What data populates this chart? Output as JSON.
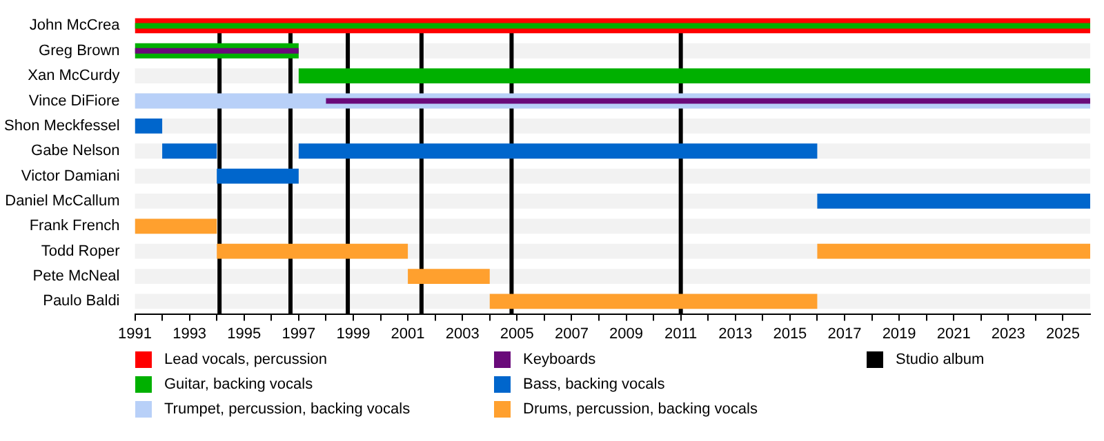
{
  "chart_data": {
    "type": "bar",
    "orientation": "horizontal",
    "legend": "bottom",
    "categories": [
      "John McCrea",
      "Greg Brown",
      "Xan McCurdy",
      "Vince DiFiore",
      "Shon Meckfessel",
      "Gabe Nelson",
      "Victor Damiani",
      "Daniel McCallum",
      "Frank French",
      "Todd Roper",
      "Pete McNeal",
      "Paulo Baldi"
    ],
    "xlim": [
      1991,
      2026
    ],
    "xticks": [
      1991,
      {
        "value": 1992,
        "label": null
      },
      1993,
      {
        "value": 1994,
        "label": null
      },
      1995,
      {
        "value": 1996,
        "label": null
      },
      1997,
      {
        "value": 1998,
        "label": null
      },
      1999,
      {
        "value": 2000,
        "label": null
      },
      2001,
      {
        "value": 2002,
        "label": null
      },
      2003,
      {
        "value": 2004,
        "label": null
      },
      2005,
      {
        "value": 2006,
        "label": null
      },
      2007,
      {
        "value": 2008,
        "label": null
      },
      2009,
      {
        "value": 2010,
        "label": null
      },
      2011,
      {
        "value": 2012,
        "label": null
      },
      2013,
      {
        "value": 2014,
        "label": null
      },
      2015,
      {
        "value": 2016,
        "label": null
      },
      2017,
      {
        "value": 2018,
        "label": null
      },
      2019,
      {
        "value": 2020,
        "label": null
      },
      2021,
      {
        "value": 2022,
        "label": null
      },
      2023,
      {
        "value": 2024,
        "label": null
      },
      2025
    ],
    "series": [
      {
        "name": "Lead vocals, percussion",
        "color": "#ff0000",
        "base": [
          1991,
          null,
          null,
          null,
          null,
          null,
          null,
          null,
          null,
          null,
          null,
          null
        ],
        "values": [
          35,
          null,
          null,
          null,
          null,
          null,
          null,
          null,
          null,
          null,
          null,
          null
        ]
      },
      {
        "name": "Guitar, backing vocals",
        "color": "#00b000",
        "base": [
          1991,
          1991,
          1997,
          null,
          null,
          null,
          null,
          null,
          null,
          null,
          null,
          null
        ],
        "values": [
          35,
          6,
          29,
          null,
          null,
          null,
          null,
          null,
          null,
          null,
          null,
          null
        ]
      },
      {
        "name": "Trumpet, percussion, backing vocals",
        "color": "#b8d0f8",
        "base": [
          null,
          null,
          null,
          1991,
          null,
          null,
          null,
          null,
          null,
          null,
          null,
          null
        ],
        "values": [
          null,
          null,
          null,
          35,
          null,
          null,
          null,
          null,
          null,
          null,
          null,
          null
        ]
      },
      {
        "name": "Keyboards",
        "color": "#6a0a7a",
        "base": [
          null,
          1991,
          null,
          1998,
          null,
          null,
          null,
          null,
          null,
          null,
          null,
          null
        ],
        "values": [
          null,
          6,
          null,
          28,
          null,
          null,
          null,
          null,
          null,
          null,
          null,
          null
        ]
      },
      {
        "name": "Bass, backing vocals",
        "color": "#0066cc",
        "base": [
          null,
          null,
          null,
          null,
          1991,
          1992,
          1994,
          2016,
          null,
          null,
          null,
          null
        ],
        "values": [
          null,
          null,
          null,
          null,
          1,
          2,
          3,
          10,
          null,
          null,
          null,
          null
        ]
      },
      {
        "name": "Drums, percussion, backing vocals",
        "color": "#ffa02e",
        "base": [
          null,
          null,
          null,
          null,
          null,
          null,
          null,
          null,
          1991,
          1994,
          2001,
          2004
        ],
        "values": [
          null,
          null,
          null,
          null,
          null,
          null,
          null,
          null,
          3,
          7,
          3,
          12
        ]
      },
      {
        "color": "#0066cc",
        "base": [
          null,
          null,
          null,
          null,
          null,
          1997,
          null,
          null,
          null,
          null,
          null,
          null
        ],
        "values": [
          null,
          null,
          null,
          null,
          null,
          19,
          null,
          null,
          null,
          null,
          null,
          null
        ]
      },
      {
        "color": "#ffa02e",
        "base": [
          null,
          null,
          null,
          null,
          null,
          null,
          null,
          null,
          null,
          2016,
          null,
          null
        ],
        "values": [
          null,
          null,
          null,
          null,
          null,
          null,
          null,
          null,
          null,
          10,
          null,
          null
        ]
      }
    ],
    "ref_lines": [
      {
        "axis": "x",
        "value": 1994.1,
        "label": "Studio album",
        "color": "#000000"
      },
      {
        "axis": "x",
        "value": 1996.7,
        "color": "#000000"
      },
      {
        "axis": "x",
        "value": 1998.8,
        "color": "#000000"
      },
      {
        "axis": "x",
        "value": 2001.5,
        "color": "#000000"
      },
      {
        "axis": "x",
        "value": 2004.8,
        "color": "#000000"
      },
      {
        "axis": "x",
        "value": 2011.0,
        "color": "#000000"
      }
    ]
  }
}
